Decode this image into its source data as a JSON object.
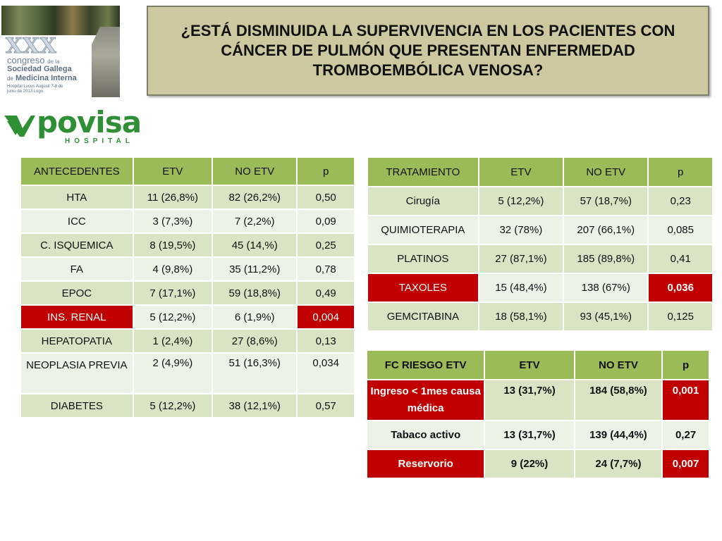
{
  "title": "¿ESTÁ DISMINUIDA LA SUPERVIVENCIA EN LOS PACIENTES CON CÁNCER DE PULMÓN QUE PRESENTAN ENFERMEDAD TROMBOEMBÓLICA VENOSA?",
  "congress_logo": {
    "numeral": "XXX",
    "line1": "congreso",
    "line1_small": "de la",
    "line2": "Sociedad Gallega",
    "line3_small": "de",
    "line3": "Medicina Interna",
    "line4": "Hospital Lucus Augusti 7-8 de junio de 2013 Lugo"
  },
  "hospital_logo": {
    "name": "povisa",
    "subtitle": "HOSPITAL"
  },
  "colors": {
    "header": "#9bbb59",
    "row_odd": "#d8e4c3",
    "row_even": "#edf2e7",
    "highlight": "#c00000",
    "title_bg": "#cdc8a0"
  },
  "antecedentes": {
    "headers": [
      "ANTECEDENTES",
      "ETV",
      "NO ETV",
      "p"
    ],
    "rows": [
      [
        "HTA",
        "11 (26,8%)",
        "82 (26,2%)",
        "0,50"
      ],
      [
        "ICC",
        "3 (7,3%)",
        "7 (2,2%)",
        "0,09"
      ],
      [
        "C. ISQUEMICA",
        "8 (19,5%)",
        "45 (14,%)",
        "0,25"
      ],
      [
        "FA",
        "4 (9,8%)",
        "35 (11,2%)",
        "0,78"
      ],
      [
        "EPOC",
        "7 (17,1%)",
        "59 (18,8%)",
        "0,49"
      ],
      [
        "INS. RENAL",
        "5 (12,2%)",
        "6 (1,9%)",
        "0,004"
      ],
      [
        "HEPATOPATIA",
        "1 (2,4%)",
        "27 (8,6%)",
        "0,13"
      ],
      [
        "NEOPLASIA PREVIA",
        "2 (4,9%)",
        "51 (16,3%)",
        "0,034"
      ],
      [
        "DIABETES",
        "5 (12,2%)",
        "38 (12,1%)",
        "0,57"
      ]
    ]
  },
  "tratamiento": {
    "headers": [
      "TRATAMIENTO",
      "ETV",
      "NO ETV",
      "p"
    ],
    "rows": [
      [
        "Cirugía",
        "5 (12,2%)",
        "57 (18,7%)",
        "0,23"
      ],
      [
        "QUIMIOTERAPIA",
        "32 (78%)",
        "207 (66,1%)",
        "0,085"
      ],
      [
        "PLATINOS",
        "27 (87,1%)",
        "185 (89,8%)",
        "0,41"
      ],
      [
        "TAXOLES",
        "15 (48,4%)",
        "138 (67%)",
        "0,036"
      ],
      [
        "GEMCITABINA",
        "18 (58,1%)",
        "93 (45,1%)",
        "0,125"
      ]
    ]
  },
  "riesgo": {
    "headers": [
      "FC RIESGO ETV",
      "ETV",
      "NO ETV",
      "p"
    ],
    "rows": [
      [
        "Ingreso < 1mes causa médica",
        "13 (31,7%)",
        "184 (58,8%)",
        "0,001"
      ],
      [
        "Tabaco activo",
        "13 (31,7%)",
        "139 (44,4%)",
        "0,27"
      ],
      [
        "Reservorio",
        "9 (22%)",
        "24 (7,7%)",
        "0,007"
      ]
    ]
  }
}
